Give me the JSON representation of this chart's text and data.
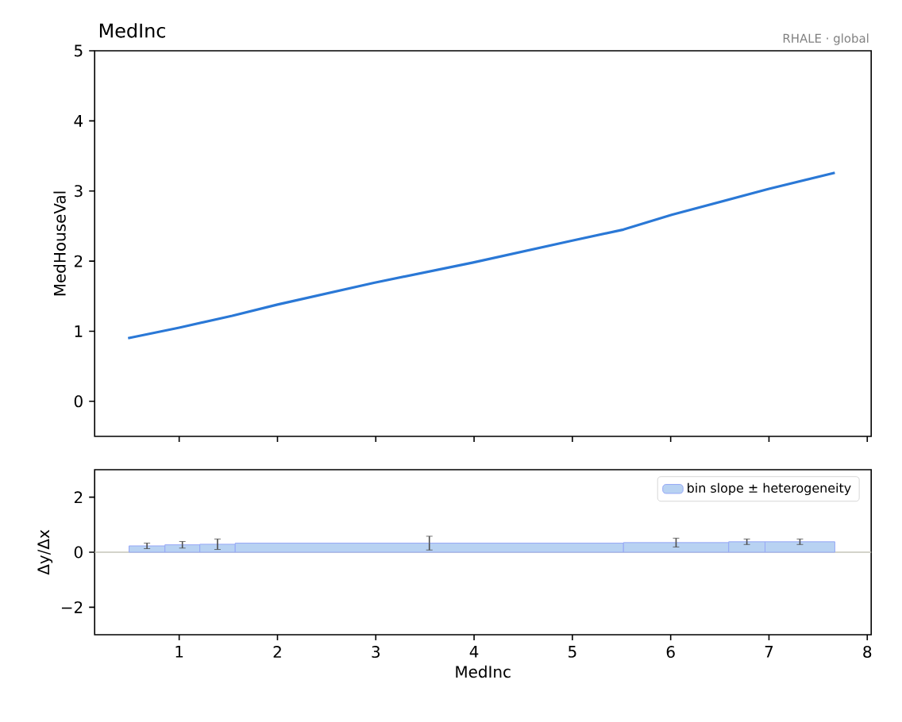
{
  "chart_data": [
    {
      "type": "line",
      "title": "MedInc",
      "ylabel": "MedHouseVal",
      "annotations": [
        "RHALE · global"
      ],
      "x": [
        0.48,
        1.0,
        1.54,
        2.0,
        2.98,
        3.99,
        4.99,
        5.52,
        6.01,
        7.0,
        7.67
      ],
      "series": [
        {
          "color": "#2a78d6",
          "values": [
            0.9,
            1.05,
            1.22,
            1.38,
            1.69,
            1.98,
            2.29,
            2.45,
            2.66,
            3.03,
            3.26
          ]
        }
      ],
      "xlim": [
        0.14,
        8.04
      ],
      "ylim": [
        -0.5,
        5
      ],
      "xticks": [
        1,
        2,
        3,
        4,
        5,
        6,
        7,
        8
      ],
      "yticks": [
        0,
        1,
        2,
        3,
        4,
        5
      ],
      "tick_labels": "y"
    },
    {
      "type": "histogram",
      "xlabel": "MedInc",
      "ylabel": "Δy/Δx",
      "bins": [
        0.49,
        0.855,
        1.21,
        1.57,
        5.52,
        6.59,
        6.96,
        7.67
      ],
      "series": [
        {
          "name": "bin slope ± heterogeneity",
          "color": "#b8d2f2",
          "values": [
            0.23,
            0.27,
            0.29,
            0.33,
            0.35,
            0.38,
            0.38
          ],
          "errors": [
            0.1,
            0.12,
            0.19,
            0.25,
            0.16,
            0.1,
            0.1
          ]
        }
      ],
      "xlim": [
        0.14,
        8.04
      ],
      "ylim": [
        -3,
        3
      ],
      "xticks": [
        1,
        2,
        3,
        4,
        5,
        6,
        7,
        8
      ],
      "yticks": [
        {
          "value": -2,
          "label": "−2"
        },
        0,
        2
      ],
      "ref_lines": [
        {
          "axis": "y",
          "value": 0,
          "color": "#c4c4b8"
        }
      ],
      "legend": "top right"
    }
  ]
}
